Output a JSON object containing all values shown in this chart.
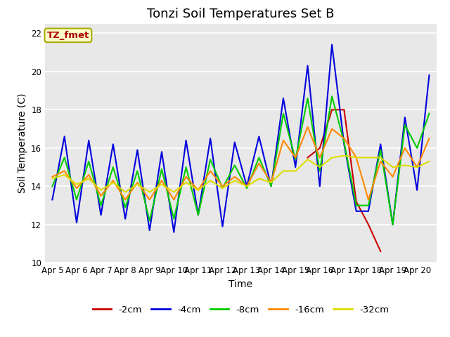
{
  "title": "Tonzi Soil Temperatures Set B",
  "xlabel": "Time",
  "ylabel": "Soil Temperature (C)",
  "ylim": [
    10,
    22.5
  ],
  "xlim": [
    -0.3,
    15.8
  ],
  "background_color": "#e8e8e8",
  "grid_color": "#ffffff",
  "annotation_text": "TZ_fmet",
  "annotation_color": "#aa0000",
  "annotation_bg": "#ffffcc",
  "annotation_border": "#aaaa00",
  "xtick_labels": [
    "Apr 5",
    "Apr 6",
    "Apr 7",
    "Apr 8",
    "Apr 9",
    "Apr 10",
    "Apr 11",
    "Apr 12",
    "Apr 13",
    "Apr 14",
    "Apr 15",
    "Apr 16",
    "Apr 17",
    "Apr 18",
    "Apr 19",
    "Apr 20"
  ],
  "series": {
    "-2cm": {
      "color": "#cc0000",
      "data_x": [
        10.5,
        11.0,
        11.5,
        12.0,
        12.5,
        13.0,
        13.5
      ],
      "data_y": [
        15.5,
        16.0,
        18.0,
        18.0,
        13.2,
        12.0,
        10.6
      ]
    },
    "-4cm": {
      "color": "#0000dd",
      "data_x": [
        0.0,
        0.5,
        1.0,
        1.5,
        2.0,
        2.5,
        3.0,
        3.5,
        4.0,
        4.5,
        5.0,
        5.5,
        6.0,
        6.5,
        7.0,
        7.5,
        8.0,
        8.5,
        9.0,
        9.5,
        10.0,
        10.5,
        11.0,
        11.5,
        12.0,
        12.5,
        13.0,
        13.5,
        14.0,
        14.5,
        15.0,
        15.5
      ],
      "data_y": [
        13.3,
        16.6,
        12.1,
        16.4,
        12.5,
        16.2,
        12.3,
        15.9,
        11.7,
        15.8,
        11.6,
        16.4,
        12.5,
        16.5,
        11.9,
        16.3,
        14.0,
        16.6,
        14.0,
        18.6,
        15.0,
        20.3,
        14.0,
        21.4,
        16.2,
        12.7,
        12.7,
        16.2,
        12.0,
        17.6,
        13.8,
        19.8
      ]
    },
    "-8cm": {
      "color": "#00cc00",
      "data_x": [
        0.0,
        0.5,
        1.0,
        1.5,
        2.0,
        2.5,
        3.0,
        3.5,
        4.0,
        4.5,
        5.0,
        5.5,
        6.0,
        6.5,
        7.0,
        7.5,
        8.0,
        8.5,
        9.0,
        9.5,
        10.0,
        10.5,
        11.0,
        11.5,
        12.0,
        12.5,
        13.0,
        13.5,
        14.0,
        14.5,
        15.0,
        15.5
      ],
      "data_y": [
        14.0,
        15.5,
        13.3,
        15.3,
        13.0,
        15.0,
        12.9,
        14.8,
        12.2,
        14.9,
        12.3,
        15.0,
        12.5,
        15.4,
        13.9,
        15.1,
        13.9,
        15.5,
        14.0,
        17.8,
        15.4,
        18.6,
        14.8,
        18.7,
        16.3,
        13.0,
        13.0,
        15.9,
        12.0,
        17.2,
        16.0,
        17.8
      ]
    },
    "-16cm": {
      "color": "#ff8800",
      "data_x": [
        0.0,
        0.5,
        1.0,
        1.5,
        2.0,
        2.5,
        3.0,
        3.5,
        4.0,
        4.5,
        5.0,
        5.5,
        6.0,
        6.5,
        7.0,
        7.5,
        8.0,
        8.5,
        9.0,
        9.5,
        10.0,
        10.5,
        11.0,
        11.5,
        12.0,
        12.5,
        13.0,
        13.5,
        14.0,
        14.5,
        15.0,
        15.5
      ],
      "data_y": [
        14.5,
        14.8,
        13.9,
        14.6,
        13.5,
        14.3,
        13.3,
        14.2,
        13.3,
        14.3,
        13.3,
        14.5,
        13.8,
        14.8,
        14.0,
        14.5,
        14.0,
        15.2,
        14.2,
        16.4,
        15.5,
        17.1,
        15.5,
        17.0,
        16.5,
        15.5,
        13.3,
        15.3,
        14.5,
        16.0,
        15.0,
        16.5
      ]
    },
    "-32cm": {
      "color": "#dddd00",
      "data_x": [
        0.0,
        0.5,
        1.0,
        1.5,
        2.0,
        2.5,
        3.0,
        3.5,
        4.0,
        4.5,
        5.0,
        5.5,
        6.0,
        6.5,
        7.0,
        7.5,
        8.0,
        8.5,
        9.0,
        9.5,
        10.0,
        10.5,
        11.0,
        11.5,
        12.0,
        12.5,
        13.0,
        13.5,
        14.0,
        14.5,
        15.0,
        15.5
      ],
      "data_y": [
        14.4,
        14.6,
        14.1,
        14.4,
        13.8,
        14.2,
        13.7,
        14.1,
        13.7,
        14.1,
        13.7,
        14.2,
        13.8,
        14.3,
        13.9,
        14.3,
        14.0,
        14.4,
        14.2,
        14.8,
        14.8,
        15.4,
        15.0,
        15.5,
        15.6,
        15.5,
        15.5,
        15.5,
        15.0,
        15.1,
        15.0,
        15.3
      ]
    }
  },
  "legend_order": [
    "-2cm",
    "-4cm",
    "-8cm",
    "-16cm",
    "-32cm"
  ],
  "title_fontsize": 13,
  "axis_label_fontsize": 10,
  "tick_fontsize": 8.5
}
